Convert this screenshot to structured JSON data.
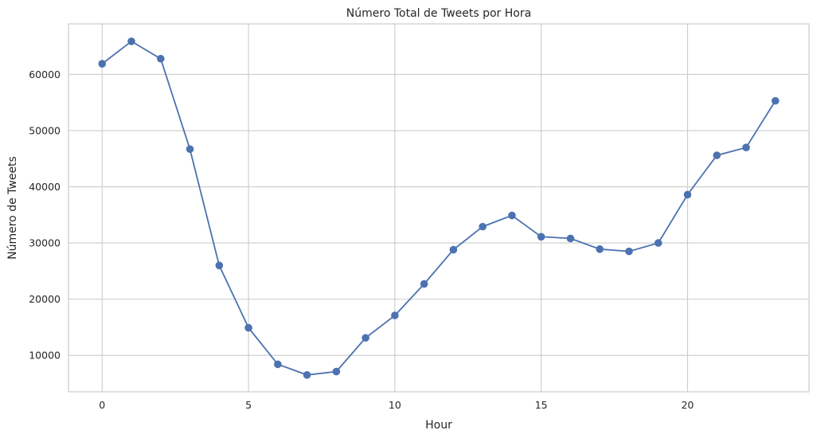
{
  "chart_data": {
    "type": "line",
    "title": "Número Total de Tweets por Hora",
    "xlabel": "Hour",
    "ylabel": "Número de Tweets",
    "x": [
      0,
      1,
      2,
      3,
      4,
      5,
      6,
      7,
      8,
      9,
      10,
      11,
      12,
      13,
      14,
      15,
      16,
      17,
      18,
      19,
      20,
      21,
      22,
      23
    ],
    "series": [
      {
        "values": [
          61900,
          65900,
          62800,
          46700,
          26000,
          14900,
          8400,
          6500,
          7100,
          13100,
          17100,
          22700,
          28800,
          32900,
          34900,
          31100,
          30800,
          28900,
          28500,
          30000,
          38600,
          45600,
          47000,
          55300
        ],
        "color": "#4c72b0",
        "marker": "circle"
      }
    ],
    "xlim": [
      -1.15,
      24.15
    ],
    "ylim": [
      3500,
      69000
    ],
    "xticks": [
      0,
      5,
      10,
      15,
      20
    ],
    "xtick_labels": [
      "0",
      "5",
      "10",
      "15",
      "20"
    ],
    "yticks": [
      10000,
      20000,
      30000,
      40000,
      50000,
      60000
    ],
    "ytick_labels": [
      "10000",
      "20000",
      "30000",
      "40000",
      "50000",
      "60000"
    ],
    "grid": true,
    "legend": "none"
  }
}
